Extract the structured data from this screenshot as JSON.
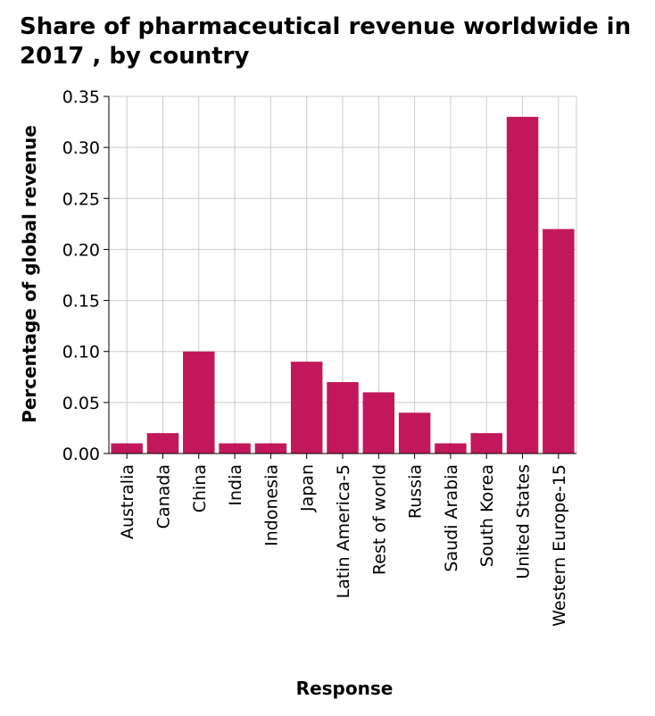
{
  "chart_data": {
    "type": "bar",
    "title": "Share of pharmaceutical revenue worldwide in 2017 , by country",
    "xlabel": "Response",
    "ylabel": "Percentage of global revenue",
    "categories": [
      "Australia",
      "Canada",
      "China",
      "India",
      "Indonesia",
      "Japan",
      "Latin America-5",
      "Rest of world",
      "Russia",
      "Saudi Arabia",
      "South Korea",
      "United States",
      "Western Europe-15"
    ],
    "values": [
      0.01,
      0.02,
      0.1,
      0.01,
      0.01,
      0.09,
      0.07,
      0.06,
      0.04,
      0.01,
      0.02,
      0.33,
      0.22
    ],
    "ylim": [
      0,
      0.35
    ],
    "yticks": [
      "0.00",
      "0.05",
      "0.10",
      "0.15",
      "0.20",
      "0.25",
      "0.30",
      "0.35"
    ],
    "grid": true,
    "bar_color": "#c2185b",
    "grid_color": "#cccccc"
  }
}
